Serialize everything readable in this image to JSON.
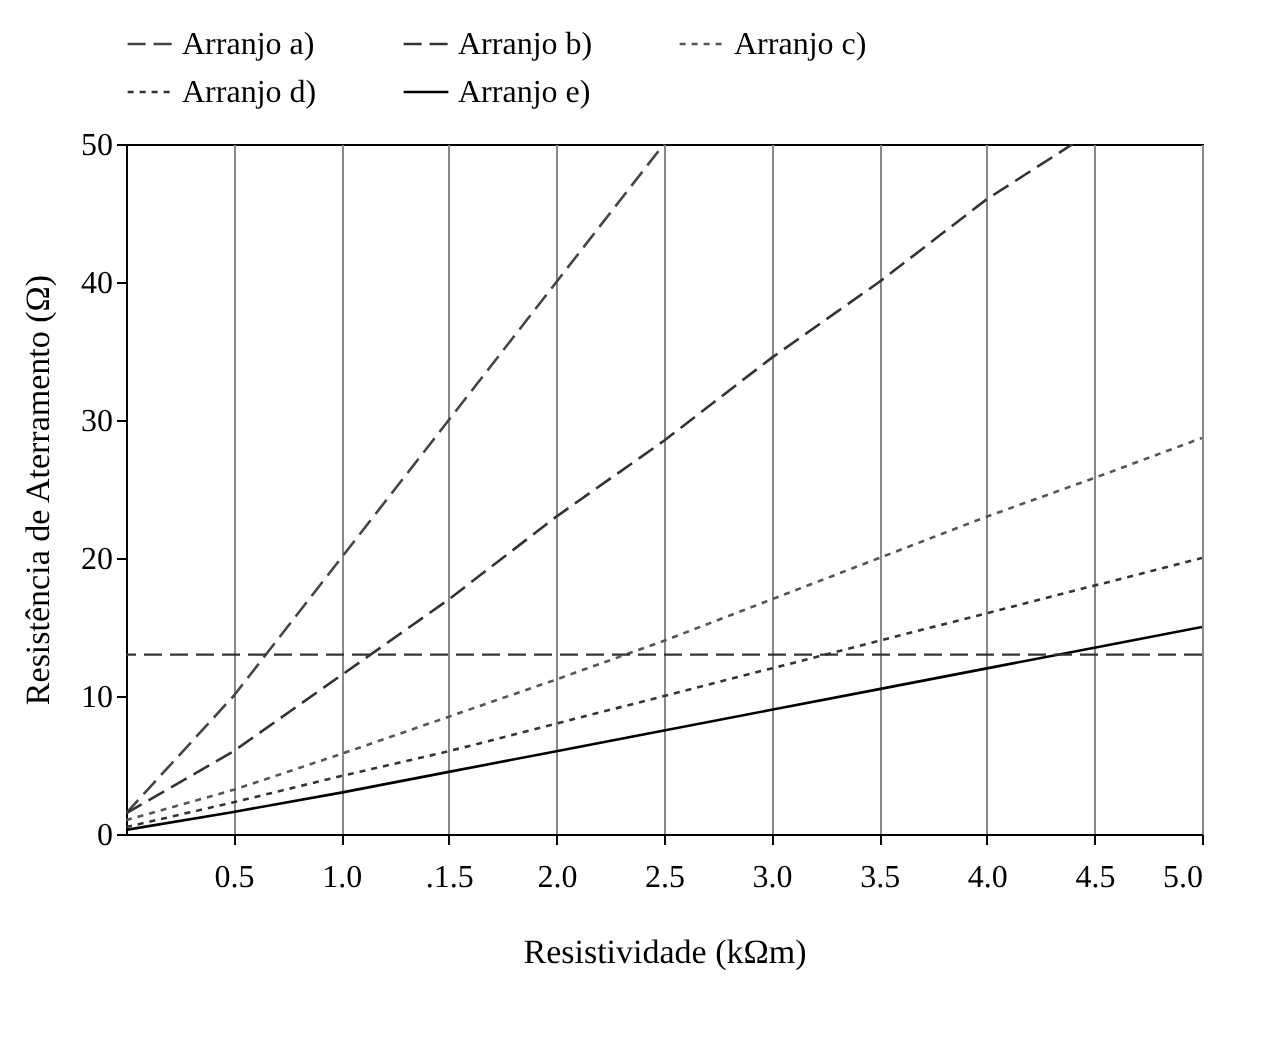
{
  "chart_data": {
    "type": "line",
    "xlabel": "Resistividade (kΩm)",
    "ylabel": "Resistência de Aterramento (Ω)",
    "x": [
      0,
      0.5,
      1,
      1.5,
      2,
      2.5,
      3,
      3.5,
      4,
      4.5,
      5
    ],
    "series": [
      {
        "name": "Arranjo a)",
        "color": "#444444",
        "line_style": "dashed",
        "x": [
          0,
          0.5,
          1,
          1.5,
          2,
          2.5
        ],
        "values": [
          1.5,
          10,
          20,
          30,
          40,
          50
        ]
      },
      {
        "name": "Arranjo b)",
        "color": "#333333",
        "line_style": "dashed",
        "x": [
          0,
          0.5,
          1,
          1.5,
          2,
          2.5,
          3,
          3.5,
          4,
          4.4
        ],
        "values": [
          1.5,
          6,
          11.5,
          17,
          23,
          28.5,
          34.5,
          40,
          46,
          50
        ]
      },
      {
        "name": "Arranjo c)",
        "color": "#555555",
        "line_style": "dotted",
        "values": [
          1,
          3.2,
          5.8,
          8.5,
          11.2,
          14,
          17,
          20,
          23,
          25.8,
          28.7
        ]
      },
      {
        "name": "Arranjo d)",
        "color": "#333333",
        "line_style": "dotted",
        "values": [
          0.5,
          2.3,
          4.2,
          6,
          8,
          10,
          12,
          14,
          16,
          18,
          20
        ]
      },
      {
        "name": "Arranjo e)",
        "color": "#000000",
        "line_style": "solid",
        "values": [
          0.3,
          1.6,
          3,
          4.5,
          6,
          7.5,
          9,
          10.5,
          12,
          13.5,
          15
        ]
      }
    ],
    "xlim": [
      0,
      5
    ],
    "xticks": [
      0.5,
      {
        "value": 1,
        "label": "1.0"
      },
      {
        "value": 1.5,
        "label": ".1.5"
      },
      {
        "value": 2,
        "label": "2.0"
      },
      2.5,
      {
        "value": 3,
        "label": "3.0"
      },
      3.5,
      {
        "value": 4,
        "label": "4.0"
      },
      4.5,
      {
        "value": 5,
        "label": "5.0"
      }
    ],
    "ylim": [
      0,
      50
    ],
    "yticks": [
      0,
      10,
      20,
      30,
      40,
      50
    ],
    "ref_lines": [
      {
        "axis": "y",
        "value": 13,
        "color": "#333333",
        "line_style": "dashed"
      }
    ],
    "grid": "x",
    "legend": "top"
  }
}
